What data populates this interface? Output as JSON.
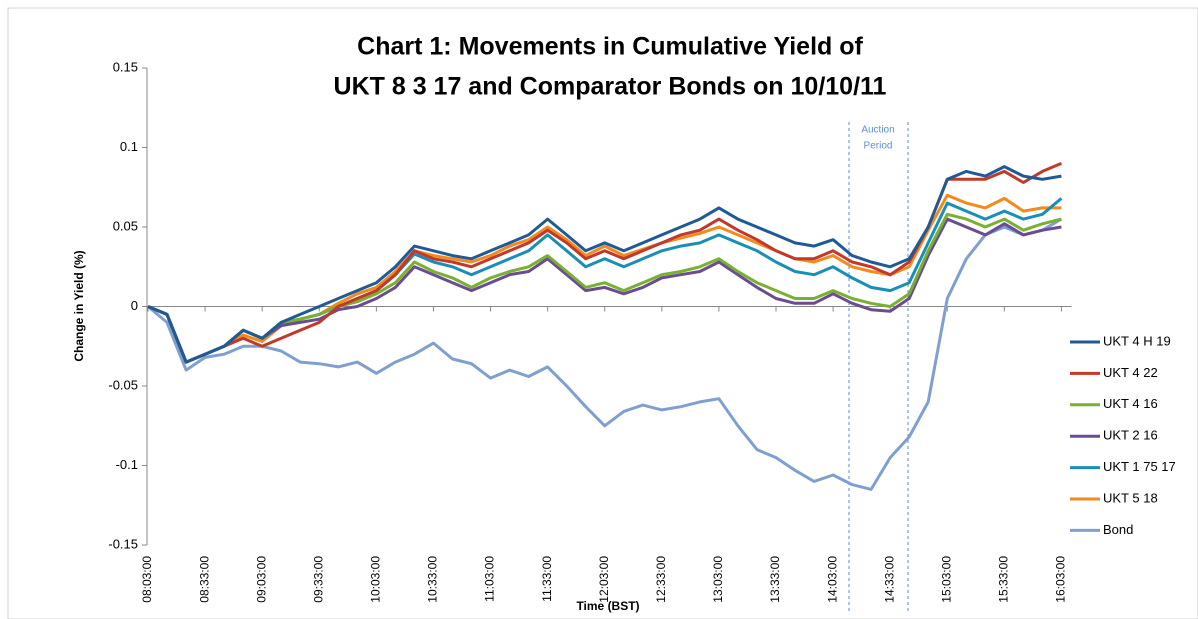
{
  "chart_data": {
    "type": "line",
    "title": [
      "Chart 1: Movements in Cumulative Yield of",
      "UKT 8 3 17 and Comparator Bonds on 10/10/11"
    ],
    "y_label": "Change in Yield (%)",
    "x_label": "Time (BST)",
    "annotation": [
      "Auction",
      "Period"
    ],
    "legend": "right",
    "ylim": [
      -0.15,
      0.15
    ],
    "yticks": [
      0.15,
      0.1,
      0.05,
      0,
      -0.05,
      -0.1,
      -0.15
    ],
    "categories": [
      "08:03:00",
      null,
      null,
      "08:33:00",
      null,
      null,
      "09:03:00",
      null,
      null,
      "09:33:00",
      null,
      null,
      "10:03:00",
      null,
      null,
      "10:33:00",
      null,
      null,
      "11:03:00",
      null,
      null,
      "11:33:00",
      null,
      null,
      "12:03:00",
      null,
      null,
      "12:33:00",
      null,
      null,
      "13:03:00",
      null,
      null,
      "13:33:00",
      null,
      null,
      "14:03:00",
      null,
      null,
      "14:33:00",
      null,
      null,
      "15:03:00",
      null,
      null,
      "15:33:00",
      null,
      null,
      "16:03:00"
    ],
    "series": [
      {
        "name": "UKT 4 H 19",
        "color": "#1f5a96",
        "values": [
          0,
          -0.005,
          -0.035,
          -0.03,
          -0.025,
          -0.015,
          -0.02,
          -0.01,
          -0.005,
          0,
          0.005,
          0.01,
          0.015,
          0.025,
          0.038,
          0.035,
          0.032,
          0.03,
          0.035,
          0.04,
          0.045,
          0.055,
          0.045,
          0.035,
          0.04,
          0.035,
          0.04,
          0.045,
          0.05,
          0.055,
          0.062,
          0.055,
          0.05,
          0.045,
          0.04,
          0.038,
          0.042,
          0.032,
          0.028,
          0.025,
          0.03,
          0.05,
          0.08,
          0.085,
          0.082,
          0.088,
          0.082,
          0.08,
          0.082
        ]
      },
      {
        "name": "UKT 4 22",
        "color": "#c0392b",
        "values": [
          0,
          -0.005,
          -0.035,
          -0.03,
          -0.025,
          -0.02,
          -0.025,
          -0.02,
          -0.015,
          -0.01,
          0,
          0.005,
          0.01,
          0.02,
          0.035,
          0.03,
          0.028,
          0.025,
          0.03,
          0.035,
          0.04,
          0.048,
          0.04,
          0.03,
          0.035,
          0.03,
          0.035,
          0.04,
          0.045,
          0.048,
          0.055,
          0.048,
          0.042,
          0.035,
          0.03,
          0.03,
          0.035,
          0.028,
          0.025,
          0.02,
          0.028,
          0.05,
          0.08,
          0.08,
          0.08,
          0.085,
          0.078,
          0.085,
          0.09
        ]
      },
      {
        "name": "UKT 4 16",
        "color": "#7ab030",
        "values": [
          0,
          -0.005,
          -0.035,
          -0.03,
          -0.025,
          -0.015,
          -0.02,
          -0.01,
          -0.008,
          -0.005,
          0,
          0.003,
          0.008,
          0.015,
          0.028,
          0.022,
          0.018,
          0.012,
          0.018,
          0.022,
          0.025,
          0.032,
          0.022,
          0.012,
          0.015,
          0.01,
          0.015,
          0.02,
          0.022,
          0.025,
          0.03,
          0.022,
          0.015,
          0.01,
          0.005,
          0.005,
          0.01,
          0.005,
          0.002,
          0,
          0.008,
          0.035,
          0.058,
          0.055,
          0.05,
          0.055,
          0.048,
          0.052,
          0.055
        ]
      },
      {
        "name": "UKT 2 16",
        "color": "#6a4c93",
        "values": [
          0,
          -0.005,
          -0.035,
          -0.03,
          -0.025,
          -0.015,
          -0.02,
          -0.012,
          -0.01,
          -0.008,
          -0.002,
          0,
          0.005,
          0.012,
          0.025,
          0.02,
          0.015,
          0.01,
          0.015,
          0.02,
          0.022,
          0.03,
          0.02,
          0.01,
          0.012,
          0.008,
          0.012,
          0.018,
          0.02,
          0.022,
          0.028,
          0.02,
          0.012,
          0.005,
          0.002,
          0.002,
          0.008,
          0.002,
          -0.002,
          -0.003,
          0.005,
          0.032,
          0.055,
          0.05,
          0.045,
          0.052,
          0.045,
          0.048,
          0.05
        ]
      },
      {
        "name": "UKT 1 75 17",
        "color": "#1a8fb5",
        "values": [
          0,
          -0.005,
          -0.035,
          -0.03,
          -0.025,
          -0.015,
          -0.02,
          -0.01,
          -0.008,
          -0.005,
          0,
          0.005,
          0.01,
          0.02,
          0.033,
          0.028,
          0.025,
          0.02,
          0.025,
          0.03,
          0.035,
          0.045,
          0.035,
          0.025,
          0.03,
          0.025,
          0.03,
          0.035,
          0.038,
          0.04,
          0.045,
          0.04,
          0.035,
          0.028,
          0.022,
          0.02,
          0.025,
          0.018,
          0.012,
          0.01,
          0.015,
          0.04,
          0.065,
          0.06,
          0.055,
          0.06,
          0.055,
          0.058,
          0.068
        ]
      },
      {
        "name": "UKT 5 18",
        "color": "#f28a1e",
        "values": [
          0,
          -0.005,
          -0.035,
          -0.03,
          -0.025,
          -0.018,
          -0.022,
          -0.012,
          -0.008,
          -0.005,
          0.002,
          0.008,
          0.012,
          0.022,
          0.035,
          0.032,
          0.03,
          0.028,
          0.032,
          0.038,
          0.042,
          0.05,
          0.042,
          0.032,
          0.038,
          0.032,
          0.036,
          0.04,
          0.043,
          0.046,
          0.05,
          0.045,
          0.04,
          0.035,
          0.03,
          0.028,
          0.032,
          0.025,
          0.022,
          0.02,
          0.025,
          0.048,
          0.07,
          0.065,
          0.062,
          0.068,
          0.06,
          0.062,
          0.062
        ]
      },
      {
        "name": "Bond",
        "color": "#7f9fd0",
        "values": [
          0,
          -0.01,
          -0.04,
          -0.032,
          -0.03,
          -0.025,
          -0.025,
          -0.028,
          -0.035,
          -0.036,
          -0.038,
          -0.035,
          -0.042,
          -0.035,
          -0.03,
          -0.023,
          -0.033,
          -0.036,
          -0.045,
          -0.04,
          -0.044,
          -0.038,
          -0.05,
          -0.063,
          -0.075,
          -0.066,
          -0.062,
          -0.065,
          -0.063,
          -0.06,
          -0.058,
          -0.075,
          -0.09,
          -0.095,
          -0.103,
          -0.11,
          -0.106,
          -0.112,
          -0.115,
          -0.095,
          -0.082,
          -0.06,
          0.005,
          0.03,
          0.045,
          0.05,
          0.045,
          0.048,
          0.055
        ]
      }
    ]
  }
}
